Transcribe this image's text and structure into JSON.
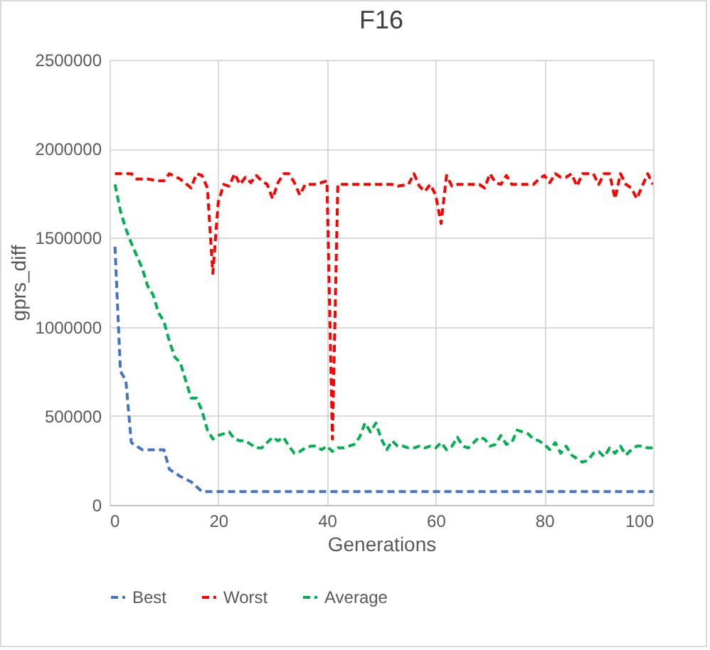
{
  "chart_data": {
    "type": "line",
    "title": "F16",
    "xlabel": "Generations",
    "ylabel": "gprs_diff",
    "xlim": [
      0,
      100
    ],
    "xticks": [
      0,
      20,
      40,
      60,
      80,
      100
    ],
    "ylim": [
      0,
      2500000
    ],
    "yticks": [
      0,
      500000,
      1000000,
      1500000,
      2000000,
      2500000
    ],
    "grid": true,
    "legend": "bottom",
    "line_style": "dashed",
    "marker": "none",
    "series": [
      {
        "name": "Best",
        "color": "#4472c4",
        "x": [
          1,
          2,
          3,
          4,
          5,
          6,
          10,
          11,
          13,
          15,
          17,
          100
        ],
        "values": [
          1450000,
          750000,
          700000,
          350000,
          330000,
          310000,
          310000,
          200000,
          160000,
          130000,
          75000,
          75000
        ]
      },
      {
        "name": "Worst",
        "color": "#ff0000",
        "x": [
          1,
          4,
          5,
          7,
          9,
          10,
          11,
          13,
          15,
          16,
          17,
          18,
          19,
          20,
          21,
          22,
          23,
          24,
          25,
          26,
          27,
          28,
          29,
          30,
          31,
          32,
          33,
          34,
          35,
          36,
          38,
          40,
          41,
          42,
          52,
          53,
          55,
          56,
          57,
          58,
          59,
          60,
          61,
          62,
          63,
          64,
          68,
          69,
          70,
          71,
          72,
          73,
          74,
          78,
          79,
          80,
          81,
          82,
          83,
          84,
          85,
          86,
          87,
          89,
          90,
          91,
          92,
          93,
          94,
          95,
          96,
          97,
          98,
          99,
          100
        ],
        "values": [
          1860000,
          1860000,
          1830000,
          1830000,
          1820000,
          1820000,
          1860000,
          1830000,
          1780000,
          1860000,
          1850000,
          1780000,
          1300000,
          1700000,
          1800000,
          1790000,
          1860000,
          1800000,
          1840000,
          1810000,
          1850000,
          1820000,
          1800000,
          1720000,
          1810000,
          1860000,
          1860000,
          1810000,
          1740000,
          1800000,
          1800000,
          1820000,
          370000,
          1800000,
          1800000,
          1790000,
          1800000,
          1860000,
          1790000,
          1760000,
          1800000,
          1740000,
          1580000,
          1850000,
          1790000,
          1800000,
          1800000,
          1780000,
          1860000,
          1810000,
          1800000,
          1850000,
          1800000,
          1800000,
          1830000,
          1850000,
          1810000,
          1860000,
          1840000,
          1840000,
          1860000,
          1790000,
          1860000,
          1860000,
          1800000,
          1860000,
          1860000,
          1720000,
          1860000,
          1800000,
          1780000,
          1720000,
          1790000,
          1860000,
          1800000
        ]
      },
      {
        "name": "Average",
        "color": "#00b050",
        "x": [
          1,
          2,
          3,
          4,
          5,
          6,
          7,
          8,
          9,
          10,
          11,
          12,
          13,
          14,
          15,
          16,
          17,
          18,
          19,
          20,
          21,
          22,
          23,
          24,
          25,
          26,
          27,
          28,
          29,
          30,
          31,
          32,
          33,
          34,
          35,
          36,
          37,
          38,
          39,
          40,
          41,
          42,
          43,
          44,
          45,
          46,
          47,
          48,
          49,
          50,
          51,
          52,
          53,
          54,
          55,
          56,
          57,
          58,
          59,
          60,
          61,
          62,
          63,
          64,
          65,
          66,
          67,
          68,
          69,
          70,
          71,
          72,
          73,
          74,
          75,
          76,
          77,
          78,
          79,
          80,
          81,
          82,
          83,
          84,
          85,
          86,
          87,
          88,
          89,
          90,
          91,
          92,
          93,
          94,
          95,
          96,
          97,
          98,
          99,
          100
        ],
        "values": [
          1800000,
          1650000,
          1550000,
          1470000,
          1400000,
          1330000,
          1230000,
          1180000,
          1080000,
          1030000,
          920000,
          830000,
          800000,
          700000,
          600000,
          600000,
          530000,
          420000,
          370000,
          390000,
          400000,
          410000,
          370000,
          360000,
          360000,
          340000,
          320000,
          320000,
          350000,
          380000,
          360000,
          380000,
          330000,
          290000,
          300000,
          320000,
          330000,
          330000,
          310000,
          330000,
          300000,
          320000,
          320000,
          330000,
          340000,
          380000,
          460000,
          410000,
          460000,
          370000,
          310000,
          360000,
          330000,
          330000,
          320000,
          320000,
          330000,
          320000,
          330000,
          320000,
          350000,
          310000,
          330000,
          380000,
          330000,
          320000,
          350000,
          380000,
          370000,
          330000,
          340000,
          390000,
          340000,
          350000,
          420000,
          410000,
          400000,
          370000,
          360000,
          340000,
          310000,
          350000,
          290000,
          330000,
          280000,
          260000,
          240000,
          250000,
          290000,
          300000,
          270000,
          320000,
          290000,
          330000,
          280000,
          310000,
          330000,
          330000,
          320000,
          320000
        ]
      }
    ]
  }
}
